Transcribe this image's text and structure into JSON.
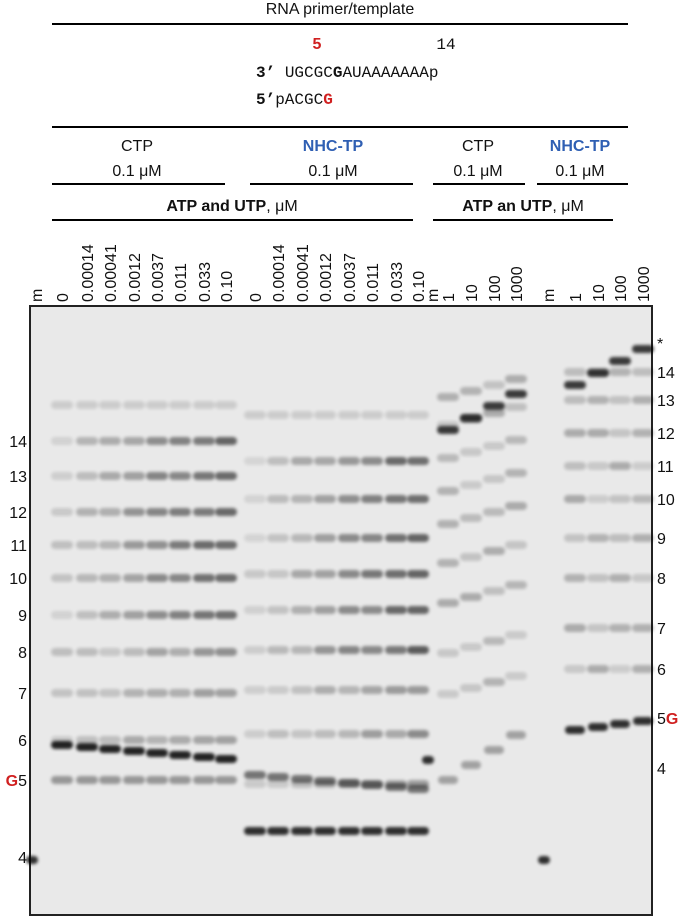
{
  "header": {
    "title": "RNA primer/template",
    "position_a": "5",
    "position_b": "14",
    "template_end": "3’",
    "template_a": "UGCGC",
    "template_g": "G",
    "template_b": "AUAAAAAAAp",
    "primer_end": "5’",
    "primer_a": "pACGC",
    "primer_g": "G"
  },
  "groups": [
    {
      "nucleotide": "CTP",
      "concentration": "0.1 μM"
    },
    {
      "nucleotide": "NHC-TP",
      "concentration": "0.1 μM"
    },
    {
      "nucleotide": "CTP",
      "concentration": "0.1 μM"
    },
    {
      "nucleotide": "NHC-TP",
      "concentration": "0.1 μM"
    }
  ],
  "conditions": [
    {
      "name": "ATP and UTP",
      "unit": ", μM"
    },
    {
      "name": "ATP an UTP",
      "unit": ", μM"
    }
  ],
  "lanes": [
    "m",
    "0",
    "0.00014",
    "0.00041",
    "0.0012",
    "0.0037",
    "0.011",
    "0.033",
    "0.10",
    "0",
    "0.00014",
    "0.00041",
    "0.0012",
    "0.0037",
    "0.011",
    "0.033",
    "0.10",
    "m",
    "1",
    "10",
    "100",
    "1000",
    "m",
    "1",
    "10",
    "100",
    "1000"
  ],
  "left_markers": [
    "14",
    "13",
    "12",
    "11",
    "10",
    "9",
    "8",
    "7",
    "6",
    {
      "text": "5",
      "nucleotide": "G"
    },
    "4"
  ],
  "right_markers": [
    "*",
    "14",
    "13",
    "12",
    "11",
    "10",
    "9",
    "8",
    "7",
    "6",
    {
      "text": "5",
      "nucleotide": "G"
    },
    "4"
  ]
}
